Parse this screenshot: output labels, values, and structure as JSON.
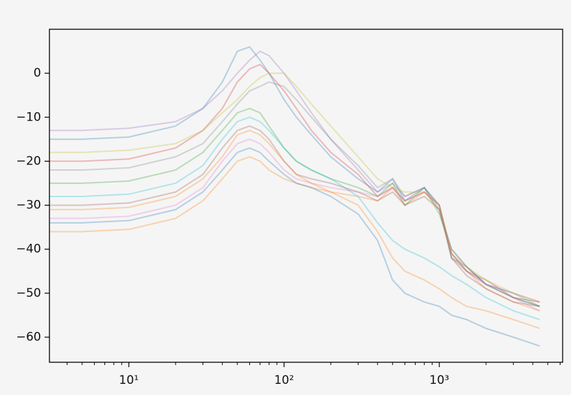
{
  "chart_data": {
    "type": "line",
    "xscale": "log",
    "xlim": [
      3.08,
      6230
    ],
    "ylim": [
      -65.7,
      10
    ],
    "xticks": [
      {
        "value": 10,
        "label": "10¹"
      },
      {
        "value": 100,
        "label": "10²"
      },
      {
        "value": 1000,
        "label": "10³"
      }
    ],
    "xticks_minor": [
      4,
      5,
      6,
      7,
      8,
      9,
      20,
      30,
      40,
      50,
      60,
      70,
      80,
      90,
      200,
      300,
      400,
      500,
      600,
      700,
      800,
      900,
      2000,
      3000,
      4000,
      5000,
      6000
    ],
    "yticks": [
      {
        "value": -60,
        "label": "−60"
      },
      {
        "value": -50,
        "label": "−50"
      },
      {
        "value": -40,
        "label": "−40"
      },
      {
        "value": -30,
        "label": "−30"
      },
      {
        "value": -20,
        "label": "−20"
      },
      {
        "value": -10,
        "label": "−10"
      },
      0
    ],
    "line_opacity": 0.3,
    "x": [
      3.08,
      5,
      10,
      20,
      30,
      40,
      50,
      60,
      70,
      80,
      100,
      120,
      150,
      200,
      300,
      400,
      500,
      600,
      800,
      1000,
      1200,
      1500,
      2000,
      3000,
      4430
    ],
    "series": [
      {
        "color": "#1f77b4",
        "values": [
          -15,
          -15,
          -14.5,
          -12,
          -8,
          -2,
          5,
          6,
          3,
          0,
          -6,
          -10,
          -14,
          -19,
          -24,
          -27,
          -24,
          -29,
          -26,
          -30,
          -42,
          -44,
          -48,
          -51,
          -53
        ]
      },
      {
        "color": "#ff7f0e",
        "values": [
          -36,
          -36,
          -35.5,
          -33,
          -29,
          -24,
          -20,
          -19,
          -20,
          -22,
          -24,
          -25,
          -26,
          -27,
          -28,
          -29,
          -26,
          -30,
          -27,
          -31,
          -41,
          -45,
          -49,
          -52,
          -54
        ]
      },
      {
        "color": "#2ca02c",
        "values": [
          -25,
          -25,
          -24.5,
          -22,
          -18,
          -13,
          -9,
          -8,
          -9,
          -12,
          -17,
          -20,
          -22,
          -24,
          -26,
          -28,
          -25,
          -30,
          -26,
          -32,
          -40,
          -44,
          -48,
          -51,
          -53
        ]
      },
      {
        "color": "#d62728",
        "values": [
          -20,
          -20,
          -19.5,
          -17,
          -13,
          -8,
          -2,
          1,
          2,
          0,
          -4,
          -8,
          -13,
          -18,
          -23,
          -28,
          -26,
          -29,
          -27,
          -30,
          -41,
          -45,
          -47,
          -51,
          -52
        ]
      },
      {
        "color": "#9467bd",
        "values": [
          -13,
          -13,
          -12.5,
          -11,
          -8,
          -4,
          0,
          3,
          5,
          4,
          0,
          -4,
          -9,
          -15,
          -22,
          -27,
          -25,
          -28,
          -26,
          -31,
          -40,
          -44,
          -48,
          -50,
          -52
        ]
      },
      {
        "color": "#8c564b",
        "values": [
          -30,
          -30,
          -29.5,
          -27,
          -23,
          -17,
          -13,
          -12,
          -13,
          -15,
          -20,
          -23,
          -24,
          -25,
          -27,
          -29,
          -27,
          -30,
          -28,
          -31,
          -42,
          -46,
          -49,
          -52,
          -53
        ]
      },
      {
        "color": "#e377c2",
        "values": [
          -33,
          -33,
          -32.5,
          -30,
          -26,
          -20,
          -16,
          -15,
          -16,
          -18,
          -22,
          -24,
          -25,
          -26,
          -27,
          -28,
          -26,
          -29,
          -27,
          -30,
          -41,
          -45,
          -48,
          -51,
          -54
        ]
      },
      {
        "color": "#7f7f7f",
        "values": [
          -22,
          -22,
          -21.5,
          -19,
          -16,
          -11,
          -7,
          -4,
          -3,
          -2,
          -3,
          -6,
          -10,
          -15,
          -21,
          -26,
          -24,
          -28,
          -26,
          -30,
          -42,
          -45,
          -48,
          -50,
          -53
        ]
      },
      {
        "color": "#bcbd22",
        "values": [
          -18,
          -18,
          -17.5,
          -16,
          -13,
          -9,
          -6,
          -3,
          -1,
          0,
          0,
          -3,
          -7,
          -12,
          -19,
          -24,
          -26,
          -27,
          -27,
          -30,
          -41,
          -44,
          -47,
          -50,
          -52
        ]
      },
      {
        "color": "#17becf",
        "values": [
          -28,
          -28,
          -27.5,
          -25,
          -21,
          -15,
          -11,
          -10,
          -11,
          -13,
          -17,
          -20,
          -22,
          -24,
          -28,
          -34,
          -38,
          -40,
          -42,
          -44,
          -46,
          -48,
          -51,
          -54,
          -56
        ]
      },
      {
        "color": "#1f77b4",
        "values": [
          -34,
          -34,
          -33.5,
          -31,
          -27,
          -22,
          -18,
          -17,
          -18,
          -20,
          -23,
          -25,
          -26,
          -28,
          -32,
          -38,
          -47,
          -50,
          -52,
          -53,
          -55,
          -56,
          -58,
          -60,
          -62
        ]
      },
      {
        "color": "#ff7f0e",
        "values": [
          -31,
          -31,
          -30.5,
          -28,
          -24,
          -19,
          -14,
          -13,
          -14,
          -16,
          -20,
          -23,
          -25,
          -27,
          -30,
          -36,
          -42,
          -45,
          -47,
          -49,
          -51,
          -53,
          -54,
          -56,
          -58
        ]
      }
    ]
  }
}
